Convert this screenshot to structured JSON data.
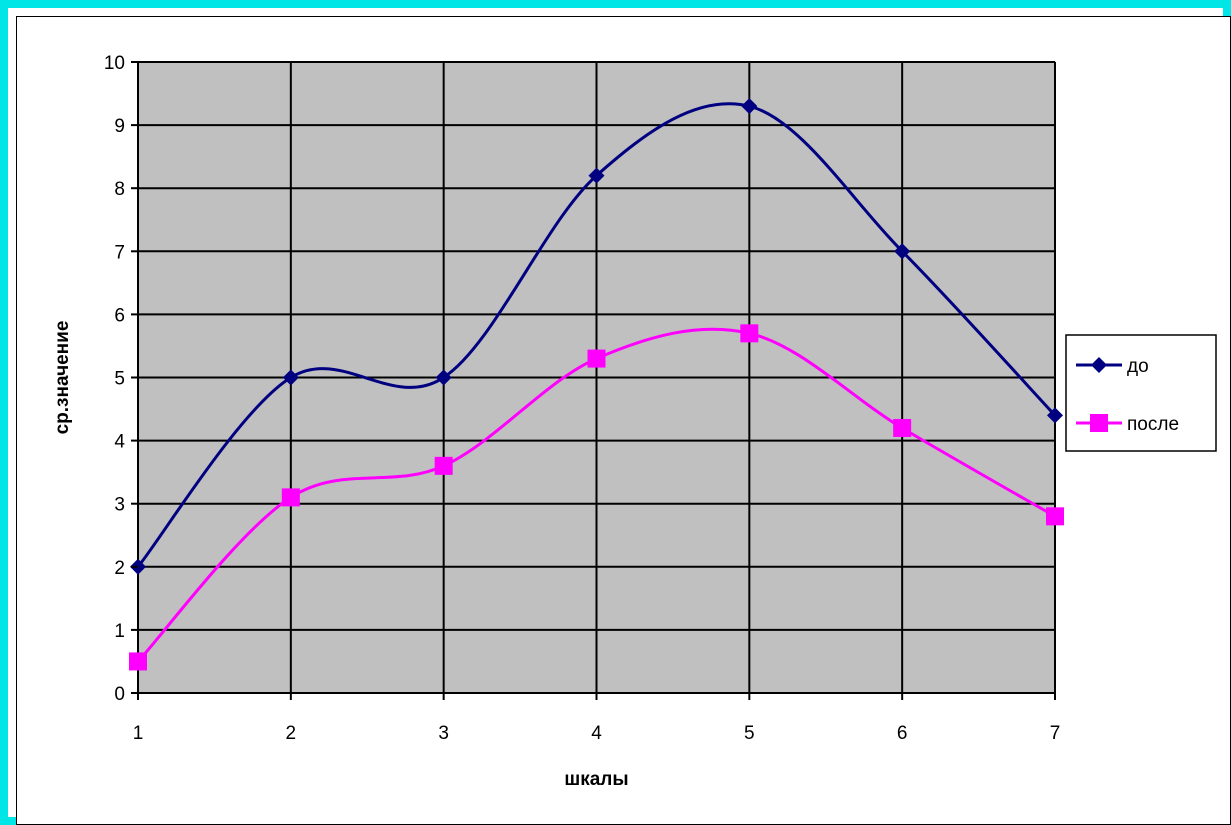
{
  "chart_data": {
    "type": "line",
    "smooth": true,
    "title": "",
    "xlabel": "шкалы",
    "ylabel": "ср.значение",
    "x": [
      1,
      2,
      3,
      4,
      5,
      6,
      7
    ],
    "x_tick_labels": [
      "1",
      "2",
      "3",
      "4",
      "5",
      "6",
      "7"
    ],
    "y_tick_labels": [
      "0",
      "1",
      "2",
      "3",
      "4",
      "5",
      "6",
      "7",
      "8",
      "9",
      "10"
    ],
    "xlim": [
      1,
      7
    ],
    "ylim": [
      0,
      10
    ],
    "y_ticks": [
      0,
      1,
      2,
      3,
      4,
      5,
      6,
      7,
      8,
      9,
      10
    ],
    "grid": true,
    "plot_background": "#c0c0c0",
    "legend_position": "right",
    "series": [
      {
        "name": "до",
        "values": [
          2.0,
          5.0,
          5.0,
          8.2,
          9.3,
          7.0,
          4.4
        ],
        "color": "#000080",
        "marker": "diamond"
      },
      {
        "name": "после",
        "values": [
          0.5,
          3.1,
          3.6,
          5.3,
          5.7,
          4.2,
          2.8
        ],
        "color": "#ff00ff",
        "marker": "square"
      }
    ]
  },
  "frame": {
    "border_color": "#00e5e5"
  }
}
